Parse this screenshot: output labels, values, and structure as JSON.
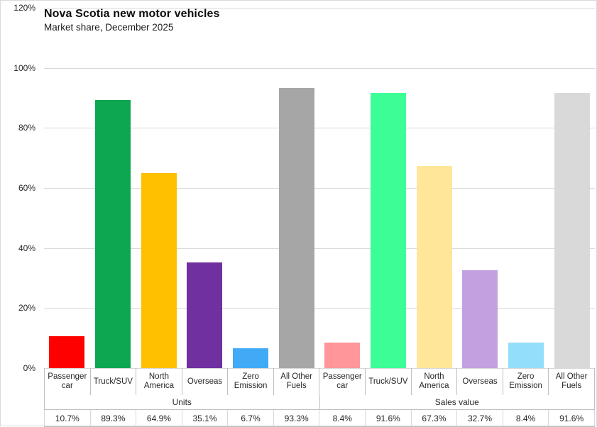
{
  "chart_data": {
    "type": "bar",
    "title": "Nova Scotia new motor vehicles",
    "subtitle": "Market share, December 2025",
    "ylabel": "",
    "xlabel": "",
    "ylim": [
      0,
      120
    ],
    "grid": true,
    "legend": false,
    "yticks": [
      {
        "value": 0,
        "label": "0%"
      },
      {
        "value": 20,
        "label": "20%"
      },
      {
        "value": 40,
        "label": "40%"
      },
      {
        "value": 60,
        "label": "60%"
      },
      {
        "value": 80,
        "label": "80%"
      },
      {
        "value": 100,
        "label": "100%"
      },
      {
        "value": 120,
        "label": "120%"
      }
    ],
    "groups": [
      {
        "label": "Units",
        "categories": [
          "Passenger car",
          "Truck/SUV",
          "North America",
          "Overseas",
          "Zero Emission",
          "All Other Fuels"
        ],
        "values": [
          10.7,
          89.3,
          64.9,
          35.1,
          6.7,
          93.3
        ],
        "value_labels": [
          "10.7%",
          "89.3%",
          "64.9%",
          "35.1%",
          "6.7%",
          "93.3%"
        ],
        "colors": [
          "#FF0000",
          "#0CA750",
          "#FFC000",
          "#7030A0",
          "#41AAF7",
          "#A6A6A6"
        ]
      },
      {
        "label": "Sales value",
        "categories": [
          "Passenger car",
          "Truck/SUV",
          "North America",
          "Overseas",
          "Zero Emission",
          "All Other Fuels"
        ],
        "values": [
          8.4,
          91.6,
          67.3,
          32.7,
          8.4,
          91.6
        ],
        "value_labels": [
          "8.4%",
          "91.6%",
          "67.3%",
          "32.7%",
          "8.4%",
          "91.6%"
        ],
        "colors": [
          "#FF9699",
          "#3DFD96",
          "#FFE699",
          "#C3A0E0",
          "#93DEFB",
          "#D9D9D9"
        ]
      }
    ],
    "colors_note": {
      "gridline": "#D9D9D9",
      "table_line": "#BFBFBF",
      "text": "#262626"
    }
  }
}
